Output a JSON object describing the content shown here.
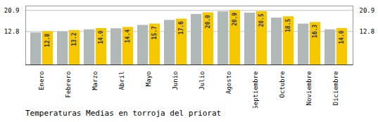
{
  "chart_data": {
    "type": "bar",
    "title": "Temperaturas Medias en torroja del priorat",
    "categories": [
      "Enero",
      "Febrero",
      "Marzo",
      "Abril",
      "Mayo",
      "Junio",
      "Julio",
      "Agosto",
      "Septiembre",
      "Octubre",
      "Noviembre",
      "Diciembre"
    ],
    "series": [
      {
        "color": "#B0B8B8",
        "values": [
          12.3,
          12.7,
          13.5,
          13.9,
          15.2,
          17.1,
          19.4,
          20.4,
          19.9,
          18.0,
          15.7,
          13.5
        ]
      },
      {
        "color": "#F5C800",
        "values": [
          12.8,
          13.2,
          14.0,
          14.4,
          15.7,
          17.6,
          20.0,
          20.9,
          20.5,
          18.5,
          16.3,
          14.0
        ],
        "data_labels": true,
        "value_labels": [
          "12.8",
          "13.2",
          "14.0",
          "14.4",
          "15.7",
          "17.6",
          "20.0",
          "20.9",
          "20.5",
          "18.5",
          "16.3",
          "14.0"
        ]
      }
    ],
    "ylim": [
      0,
      22.6
    ],
    "yticks": [
      12.8,
      20.9
    ],
    "grid": true
  }
}
